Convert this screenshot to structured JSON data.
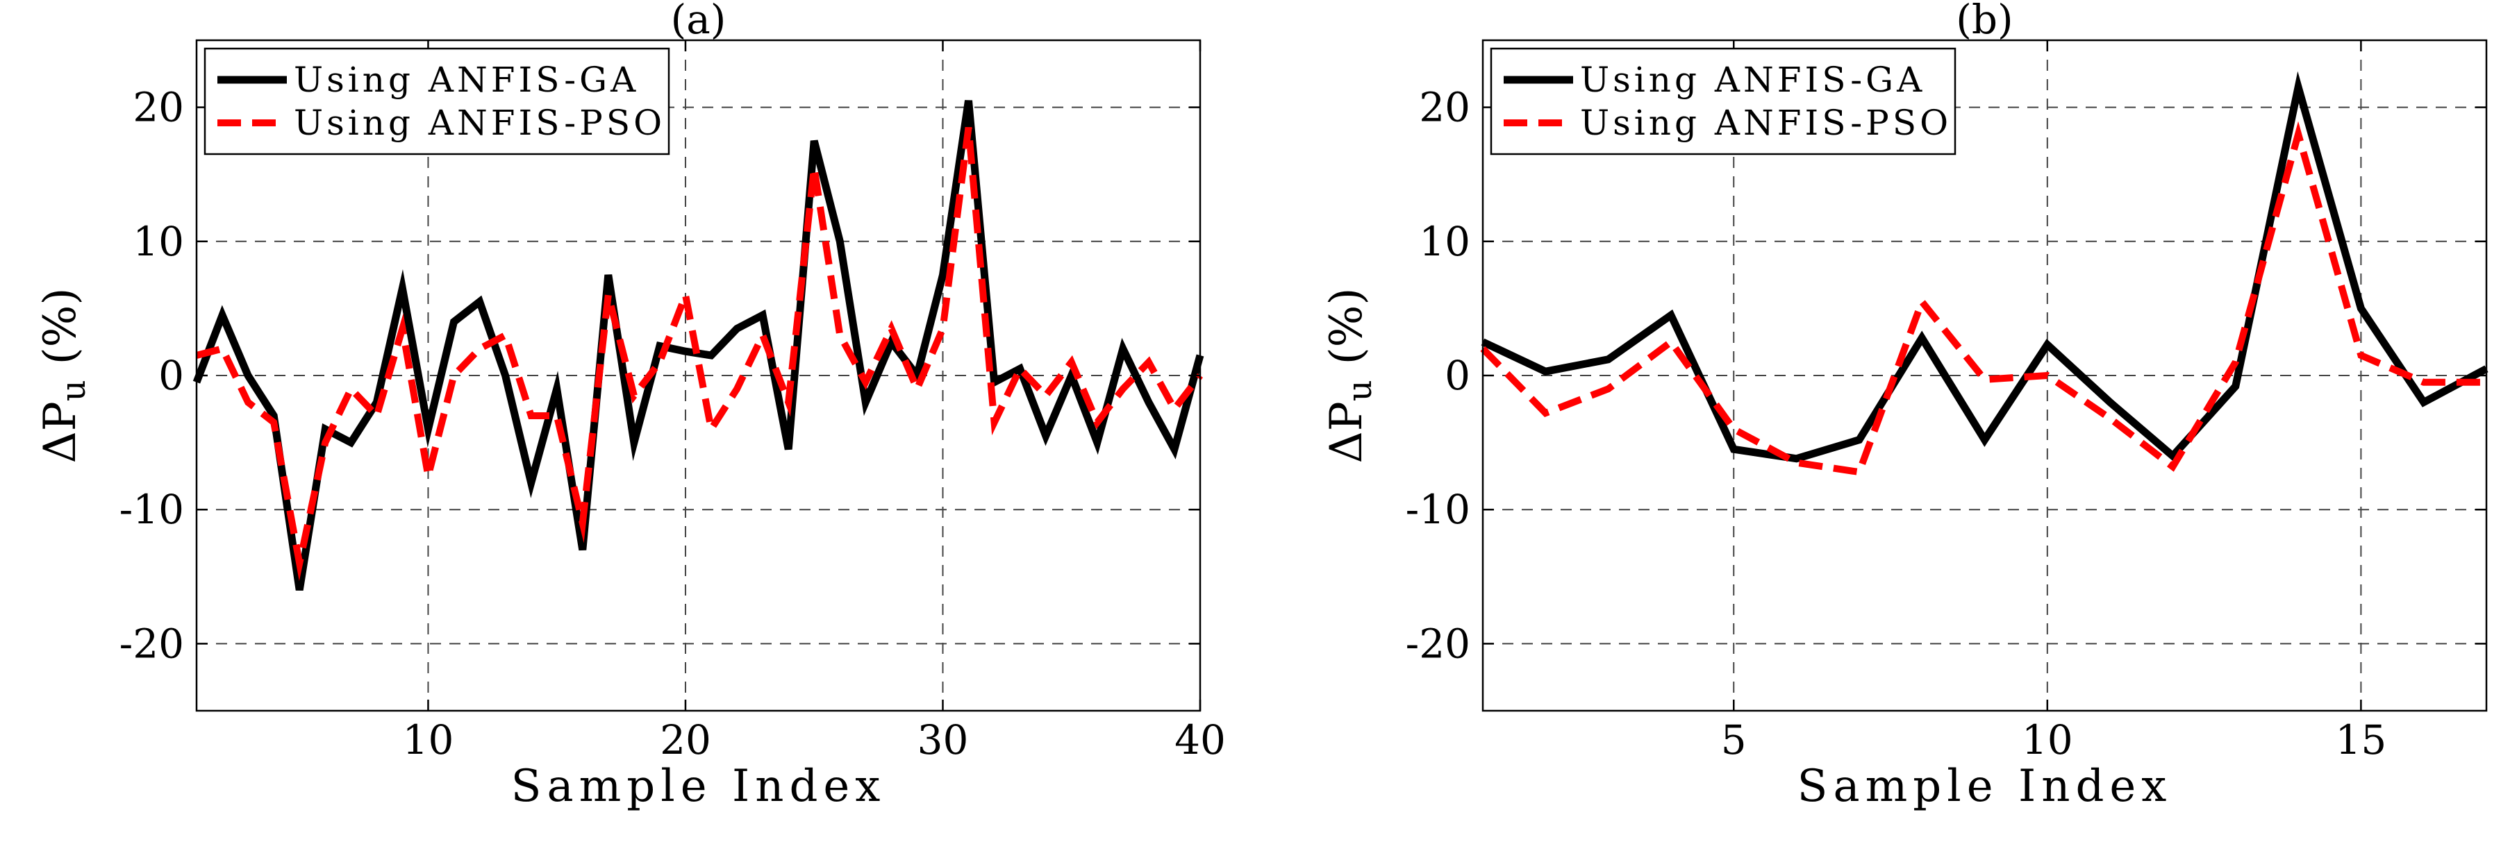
{
  "colors": {
    "ga": "#000000",
    "pso": "#ff0000",
    "grid": "#444444",
    "background": "#ffffff"
  },
  "chart_data": [
    {
      "type": "line",
      "title": "(a)",
      "xlabel": "Sample Index",
      "ylabel": "ΔP",
      "ylabel_sub": "u",
      "ylabel_unit": "(%)",
      "xlim": [
        1,
        40
      ],
      "ylim": [
        -25,
        25
      ],
      "xticks": [
        10,
        20,
        30,
        40
      ],
      "yticks": [
        -20,
        -10,
        0,
        10,
        20
      ],
      "grid": true,
      "legend_position": "top-left",
      "x": [
        1,
        2,
        3,
        4,
        5,
        6,
        7,
        8,
        9,
        10,
        11,
        12,
        13,
        14,
        15,
        16,
        17,
        18,
        19,
        20,
        21,
        22,
        23,
        24,
        25,
        26,
        27,
        28,
        29,
        30,
        31,
        32,
        33,
        34,
        35,
        36,
        37,
        38,
        39,
        40
      ],
      "series": [
        {
          "name": "Using ANFIS-GA",
          "style": "solid",
          "values": [
            -0.5,
            4.5,
            0,
            -3,
            -16,
            -4,
            -5,
            -2,
            6.5,
            -4,
            4,
            5.5,
            0,
            -8,
            -1,
            -13,
            7.5,
            -5,
            2.2,
            1.8,
            1.5,
            3.5,
            4.5,
            -5.5,
            17.5,
            10,
            -2,
            2.5,
            0,
            7.5,
            20.5,
            -0.5,
            0.5,
            -4.5,
            0,
            -5,
            2,
            -2,
            -5.5,
            1.5
          ]
        },
        {
          "name": "Using ANFIS-PSO",
          "style": "dashed",
          "values": [
            1.5,
            2,
            -2,
            -3.5,
            -14,
            -5,
            -1,
            -3,
            3.5,
            -7.5,
            0,
            2,
            3,
            -3,
            -3,
            -11,
            6,
            -1.5,
            1,
            6,
            -4,
            -1,
            3,
            -2,
            15.5,
            3,
            -0.5,
            3.5,
            -1,
            3.5,
            18.5,
            -3.5,
            0.5,
            -1.5,
            1,
            -3.5,
            -1,
            1,
            -2.5,
            0
          ]
        }
      ]
    },
    {
      "type": "line",
      "title": "(b)",
      "xlabel": "Sample Index",
      "ylabel": "ΔP",
      "ylabel_sub": "u",
      "ylabel_unit": "(%)",
      "xlim": [
        1,
        17
      ],
      "ylim": [
        -25,
        25
      ],
      "xticks": [
        5,
        10,
        15
      ],
      "yticks": [
        -20,
        -10,
        0,
        10,
        20
      ],
      "grid": true,
      "legend_position": "top-left",
      "x": [
        1,
        2,
        3,
        4,
        5,
        6,
        7,
        8,
        9,
        10,
        11,
        12,
        13,
        14,
        15,
        16,
        17
      ],
      "series": [
        {
          "name": "Using ANFIS-GA",
          "style": "solid",
          "values": [
            2.5,
            0.3,
            1.2,
            4.5,
            -5.5,
            -6.2,
            -4.8,
            2.8,
            -4.8,
            2.3,
            -2,
            -6,
            -0.8,
            21.5,
            5,
            -2,
            0.5
          ]
        },
        {
          "name": "Using ANFIS-PSO",
          "style": "dashed",
          "values": [
            2,
            -2.8,
            -1,
            2.5,
            -4,
            -6.5,
            -7.2,
            5.5,
            -0.3,
            0,
            -3.2,
            -6.8,
            1,
            18,
            1.5,
            -0.5,
            -0.5
          ]
        }
      ]
    }
  ]
}
